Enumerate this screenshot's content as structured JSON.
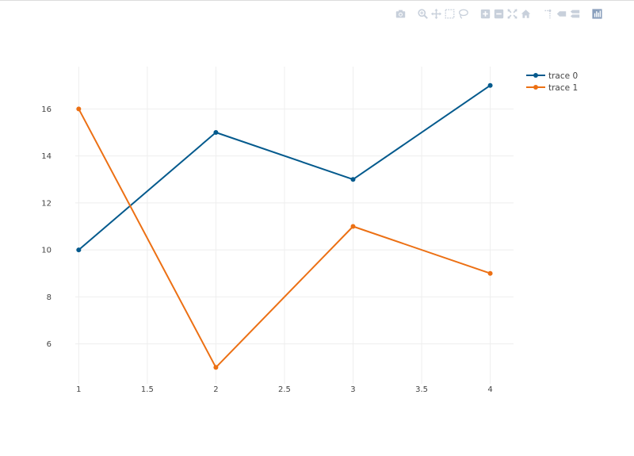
{
  "modebar": {
    "buttons": [
      {
        "name": "camera-icon",
        "group": 0
      },
      {
        "name": "zoom-icon",
        "group": 1
      },
      {
        "name": "pan-icon",
        "group": 1
      },
      {
        "name": "box-select-icon",
        "group": 1
      },
      {
        "name": "lasso-select-icon",
        "group": 1
      },
      {
        "name": "zoom-in-icon",
        "group": 2
      },
      {
        "name": "zoom-out-icon",
        "group": 2
      },
      {
        "name": "autoscale-icon",
        "group": 2
      },
      {
        "name": "home-icon",
        "group": 2
      },
      {
        "name": "spike-lines-icon",
        "group": 3
      },
      {
        "name": "hover-closest-icon",
        "group": 3
      },
      {
        "name": "hover-compare-icon",
        "group": 3
      },
      {
        "name": "plotly-logo-icon",
        "group": 4
      }
    ],
    "icon_color": "#c8d0db",
    "logo_color": "#8aa0bd"
  },
  "chart_data": {
    "type": "line",
    "x_ticks": [
      "1",
      "1.5",
      "2",
      "2.5",
      "3",
      "3.5",
      "4"
    ],
    "y_ticks": [
      "6",
      "8",
      "10",
      "12",
      "14",
      "16"
    ],
    "xlim": [
      0.975,
      4.17
    ],
    "ylim": [
      4.3,
      17.8
    ],
    "grid": true,
    "legend_position": "top-right",
    "series": [
      {
        "name": "trace 0",
        "color": "#045a8d",
        "x": [
          1,
          2,
          3,
          4
        ],
        "y": [
          10,
          15,
          13,
          17
        ]
      },
      {
        "name": "trace 1",
        "color": "#ec7014",
        "x": [
          1,
          2,
          3,
          4
        ],
        "y": [
          16,
          5,
          11,
          9
        ]
      }
    ]
  }
}
